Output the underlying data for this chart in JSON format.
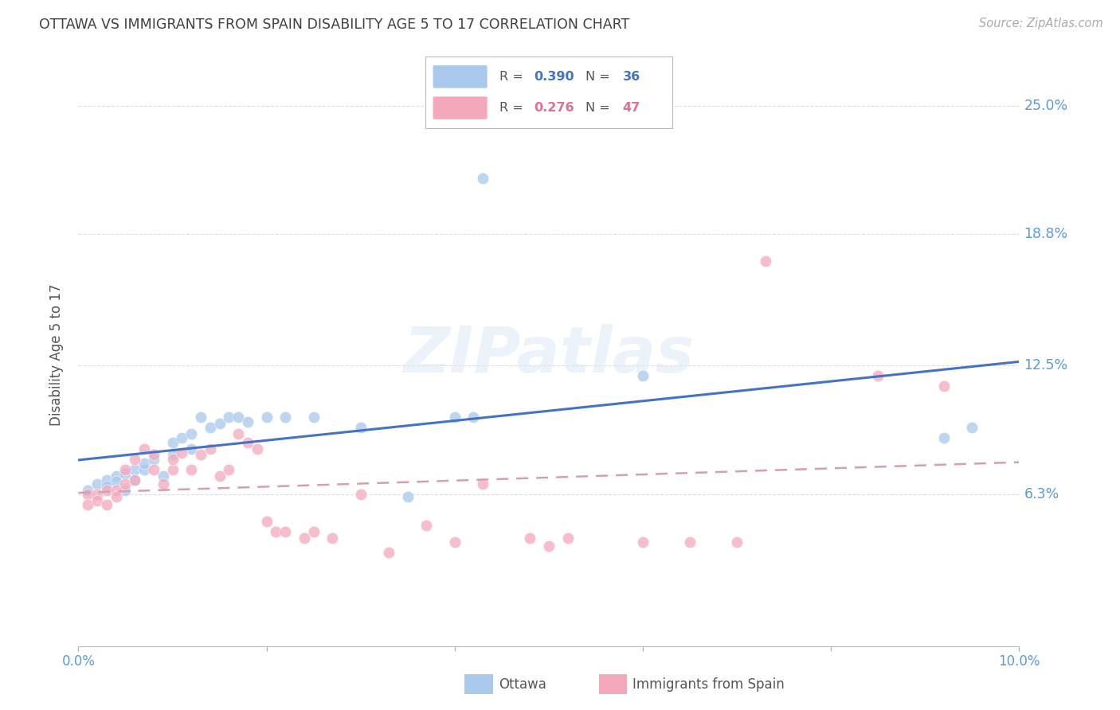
{
  "title": "OTTAWA VS IMMIGRANTS FROM SPAIN DISABILITY AGE 5 TO 17 CORRELATION CHART",
  "source": "Source: ZipAtlas.com",
  "ylabel": "Disability Age 5 to 17",
  "xlim": [
    0.0,
    0.1
  ],
  "ylim": [
    -0.01,
    0.27
  ],
  "ytick_labels_right": [
    "6.3%",
    "12.5%",
    "18.8%",
    "25.0%"
  ],
  "ytick_vals_right": [
    0.063,
    0.125,
    0.188,
    0.25
  ],
  "blue_color": "#a8c8ec",
  "pink_color": "#f4a8bc",
  "blue_line_color": "#4472c4",
  "pink_line_color": "#c0a0b0",
  "background_color": "#ffffff",
  "grid_color": "#cccccc",
  "title_color": "#404040",
  "tick_label_color": "#5a9bd5",
  "watermark": "ZIPatlas",
  "ottawa_x": [
    0.001,
    0.002,
    0.003,
    0.003,
    0.004,
    0.004,
    0.005,
    0.005,
    0.006,
    0.006,
    0.007,
    0.007,
    0.008,
    0.009,
    0.01,
    0.01,
    0.011,
    0.012,
    0.012,
    0.013,
    0.014,
    0.015,
    0.016,
    0.017,
    0.018,
    0.02,
    0.022,
    0.025,
    0.03,
    0.035,
    0.04,
    0.042,
    0.043,
    0.06,
    0.092,
    0.095
  ],
  "ottawa_y": [
    0.065,
    0.068,
    0.07,
    0.067,
    0.072,
    0.069,
    0.073,
    0.065,
    0.075,
    0.07,
    0.075,
    0.078,
    0.08,
    0.072,
    0.082,
    0.088,
    0.09,
    0.085,
    0.092,
    0.1,
    0.095,
    0.097,
    0.1,
    0.1,
    0.098,
    0.1,
    0.1,
    0.1,
    0.095,
    0.062,
    0.1,
    0.1,
    0.215,
    0.12,
    0.09,
    0.095
  ],
  "spain_x": [
    0.001,
    0.001,
    0.002,
    0.002,
    0.003,
    0.003,
    0.004,
    0.004,
    0.005,
    0.005,
    0.006,
    0.006,
    0.007,
    0.008,
    0.008,
    0.009,
    0.01,
    0.01,
    0.011,
    0.012,
    0.013,
    0.014,
    0.015,
    0.016,
    0.017,
    0.018,
    0.019,
    0.02,
    0.021,
    0.022,
    0.024,
    0.025,
    0.027,
    0.03,
    0.033,
    0.037,
    0.04,
    0.043,
    0.048,
    0.05,
    0.052,
    0.06,
    0.065,
    0.07,
    0.073,
    0.085,
    0.092
  ],
  "spain_y": [
    0.063,
    0.058,
    0.063,
    0.06,
    0.065,
    0.058,
    0.065,
    0.062,
    0.068,
    0.075,
    0.07,
    0.08,
    0.085,
    0.075,
    0.082,
    0.068,
    0.075,
    0.08,
    0.083,
    0.075,
    0.082,
    0.085,
    0.072,
    0.075,
    0.092,
    0.088,
    0.085,
    0.05,
    0.045,
    0.045,
    0.042,
    0.045,
    0.042,
    0.063,
    0.035,
    0.048,
    0.04,
    0.068,
    0.042,
    0.038,
    0.042,
    0.04,
    0.04,
    0.04,
    0.175,
    0.12,
    0.115
  ],
  "legend_R1": "R = 0.390",
  "legend_N1": "N = 36",
  "legend_R2": "R = 0.276",
  "legend_N2": "N = 47",
  "legend_label1": "Ottawa",
  "legend_label2": "Immigrants from Spain"
}
